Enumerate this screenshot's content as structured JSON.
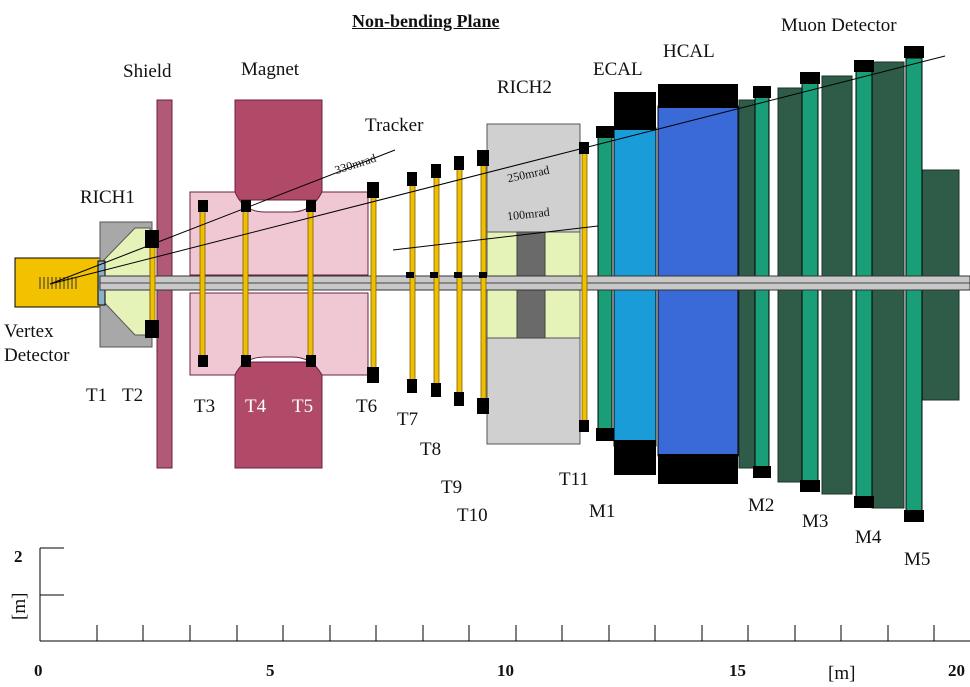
{
  "title": "Non-bending Plane",
  "subsystems": {
    "shield": "Shield",
    "magnet": "Magnet",
    "tracker": "Tracker",
    "rich1": "RICH1",
    "rich2": "RICH2",
    "ecal": "ECAL",
    "hcal": "HCAL",
    "muon": "Muon Detector",
    "vertex_line1": "Vertex",
    "vertex_line2": "Detector"
  },
  "stations": {
    "t1": "T1",
    "t2": "T2",
    "t3": "T3",
    "t4": "T4",
    "t5": "T5",
    "t6": "T6",
    "t7": "T7",
    "t8": "T8",
    "t9": "T9",
    "t10": "T10",
    "t11": "T11",
    "m1": "M1",
    "m2": "M2",
    "m3": "M3",
    "m4": "M4",
    "m5": "M5"
  },
  "angles": {
    "a330": "330mrad",
    "a250": "250mrad",
    "a100": "100mrad"
  },
  "scale": {
    "x_ticks": [
      "0",
      "5",
      "10",
      "15",
      "20"
    ],
    "x_unit": "[m]",
    "y_tick": "2",
    "y_unit": "[m]"
  },
  "colors": {
    "vertex": "#f2c200",
    "rich": "#a8a8a8",
    "rich_gas": "#e6f3b8",
    "shield": "#b05a78",
    "magnet_yoke": "#b04a68",
    "magnet_pole": "#f0c8d4",
    "tracker": "#f0c000",
    "ecal": "#1a9cd8",
    "hcal": "#3a6ad8",
    "muon_filter": "#2f5c48",
    "muon_chamber": "#1a9e78",
    "black": "#000000"
  }
}
